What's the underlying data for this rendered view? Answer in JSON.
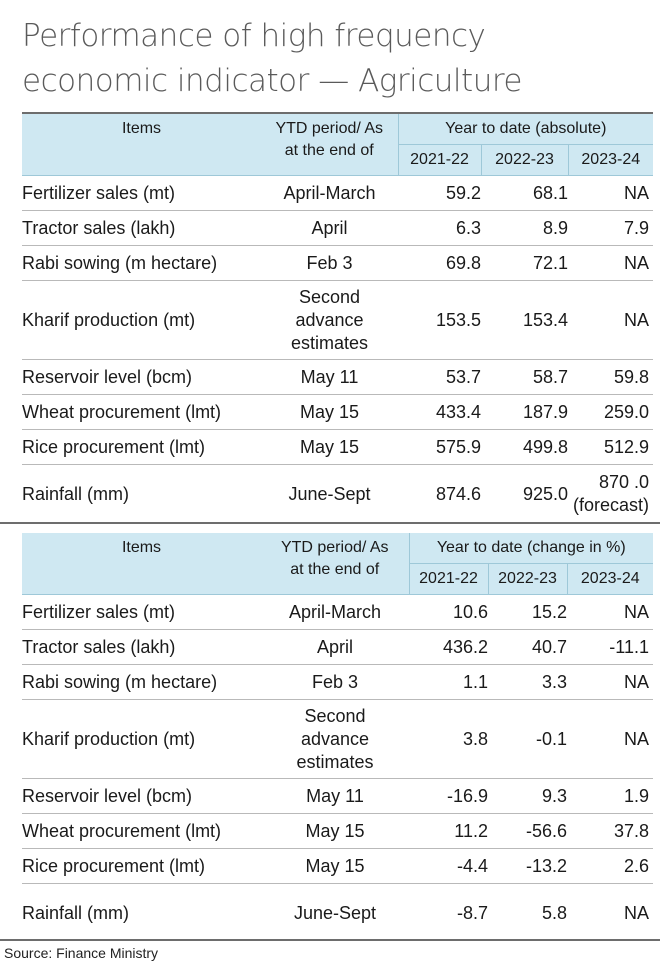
{
  "title": "Performance of high frequency economic indicator — Agriculture",
  "title_line1": "Performance of high frequency",
  "title_line2": "economic indicator — Agriculture",
  "source": "Source: Finance Ministry",
  "colors": {
    "header_bg": "#cfe8f2",
    "title": "#5a5a5a",
    "text": "#1a1a1a"
  },
  "chart_data": [
    {
      "type": "table",
      "header": {
        "items": "Items",
        "period": "YTD period/ As at the end of",
        "group": "Year to date (absolute)",
        "years": [
          "2021-22",
          "2022-23",
          "2023-24"
        ]
      },
      "rows": [
        {
          "item": "Fertilizer sales (mt)",
          "period": "April-March",
          "values": [
            "59.2",
            "68.1",
            "NA"
          ]
        },
        {
          "item": "Tractor sales (lakh)",
          "period": "April",
          "values": [
            "6.3",
            "8.9",
            "7.9"
          ]
        },
        {
          "item": "Rabi sowing (m hectare)",
          "period": "Feb 3",
          "values": [
            "69.8",
            "72.1",
            "NA"
          ]
        },
        {
          "item": "Kharif production (mt)",
          "period": "Second advance estimates",
          "values": [
            "153.5",
            "153.4",
            "NA"
          ]
        },
        {
          "item": "Reservoir level (bcm)",
          "period": "May 11",
          "values": [
            "53.7",
            "58.7",
            "59.8"
          ]
        },
        {
          "item": "Wheat procurement (lmt)",
          "period": "May 15",
          "values": [
            "433.4",
            "187.9",
            "259.0"
          ]
        },
        {
          "item": "Rice procurement (lmt)",
          "period": "May 15",
          "values": [
            "575.9",
            "499.8",
            "512.9"
          ]
        },
        {
          "item": "Rainfall (mm)",
          "period": "June-Sept",
          "values": [
            "874.6",
            "925.0",
            "870 .0"
          ],
          "note": "(forecast)"
        }
      ]
    },
    {
      "type": "table",
      "header": {
        "items": "Items",
        "period": "YTD period/ As at the end of",
        "group": "Year to date (change in %)",
        "years": [
          "2021-22",
          "2022-23",
          "2023-24"
        ]
      },
      "rows": [
        {
          "item": "Fertilizer sales (mt)",
          "period": "April-March",
          "values": [
            "10.6",
            "15.2",
            "NA"
          ]
        },
        {
          "item": "Tractor sales (lakh)",
          "period": "April",
          "values": [
            "436.2",
            "40.7",
            "-11.1"
          ]
        },
        {
          "item": "Rabi sowing (m hectare)",
          "period": "Feb 3",
          "values": [
            "1.1",
            "3.3",
            "NA"
          ]
        },
        {
          "item": "Kharif production (mt)",
          "period": "Second advance estimates",
          "values": [
            "3.8",
            "-0.1",
            "NA"
          ]
        },
        {
          "item": "Reservoir level (bcm)",
          "period": "May 11",
          "values": [
            "-16.9",
            "9.3",
            "1.9"
          ]
        },
        {
          "item": "Wheat procurement (lmt)",
          "period": "May 15",
          "values": [
            "11.2",
            "-56.6",
            "37.8"
          ]
        },
        {
          "item": "Rice procurement (lmt)",
          "period": "May 15",
          "values": [
            "-4.4",
            "-13.2",
            "2.6"
          ]
        },
        {
          "item": "Rainfall (mm)",
          "period": "June-Sept",
          "values": [
            "-8.7",
            "5.8",
            "NA"
          ]
        }
      ]
    }
  ]
}
